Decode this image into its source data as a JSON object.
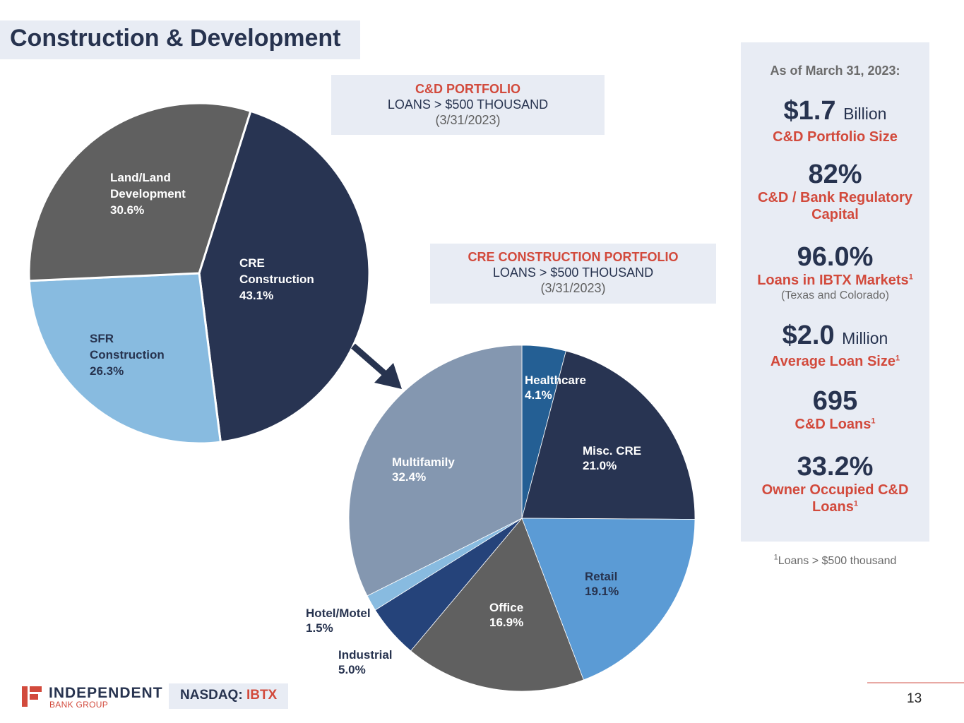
{
  "page": {
    "title": "Construction & Development",
    "page_number": "13"
  },
  "captions": {
    "cd": {
      "title": "C&D PORTFOLIO",
      "subtitle": "LOANS > $500 THOUSAND",
      "date": "(3/31/2023)"
    },
    "cre": {
      "title": "CRE CONSTRUCTION PORTFOLIO",
      "subtitle": "LOANS > $500 THOUSAND",
      "date": "(3/31/2023)"
    }
  },
  "colors": {
    "navy": "#27334f",
    "accent_red": "#d24a3c",
    "panel_bg": "#e8ecf4"
  },
  "chart_data": [
    {
      "type": "pie",
      "title": "C&D PORTFOLIO LOANS > $500 THOUSAND (3/31/2023)",
      "start_angle_deg": 17.6,
      "direction": "clockwise",
      "slices": [
        {
          "label_lines": [
            "CRE",
            "Construction"
          ],
          "value": 43.1,
          "pct": "43.1%",
          "color": "#283452",
          "text_color": "#ffffff"
        },
        {
          "label_lines": [
            "SFR",
            "Construction"
          ],
          "value": 26.3,
          "pct": "26.3%",
          "color": "#88bbe0",
          "text_color": "#27334f"
        },
        {
          "label_lines": [
            "Land/Land",
            "Development"
          ],
          "value": 30.6,
          "pct": "30.6%",
          "color": "#606060",
          "text_color": "#ffffff"
        }
      ]
    },
    {
      "type": "pie",
      "title": "CRE CONSTRUCTION PORTFOLIO LOANS > $500 THOUSAND (3/31/2023)",
      "start_angle_deg": 0,
      "direction": "clockwise",
      "slices": [
        {
          "label_lines": [
            "Healthcare"
          ],
          "value": 4.1,
          "pct": "4.1%",
          "color": "#245f94",
          "text_color": "#ffffff"
        },
        {
          "label_lines": [
            "Misc. CRE"
          ],
          "value": 21.0,
          "pct": "21.0%",
          "color": "#283452",
          "text_color": "#ffffff"
        },
        {
          "label_lines": [
            "Retail"
          ],
          "value": 19.1,
          "pct": "19.1%",
          "color": "#5b9bd5",
          "text_color": "#27334f"
        },
        {
          "label_lines": [
            "Office"
          ],
          "value": 16.9,
          "pct": "16.9%",
          "color": "#606060",
          "text_color": "#ffffff"
        },
        {
          "label_lines": [
            "Industrial"
          ],
          "value": 5.0,
          "pct": "5.0%",
          "color": "#25437a",
          "text_color": "#27334f"
        },
        {
          "label_lines": [
            "Hotel/Motel"
          ],
          "value": 1.5,
          "pct": "1.5%",
          "color": "#88bbe0",
          "text_color": "#27334f"
        },
        {
          "label_lines": [
            "Multifamily"
          ],
          "value": 32.4,
          "pct": "32.4%",
          "color": "#8497b0",
          "text_color": "#ffffff"
        }
      ]
    }
  ],
  "stats": {
    "as_of": "As of March 31, 2023:",
    "items": [
      {
        "value": "$1.7",
        "unit": "Billion",
        "label": "C&D Portfolio Size"
      },
      {
        "value": "82%",
        "label": "C&D / Bank Regulatory Capital"
      },
      {
        "value": "96.0%",
        "label": "Loans in IBTX Markets",
        "sup": "1",
        "note": "(Texas and Colorado)"
      },
      {
        "value": "$2.0",
        "unit": "Million",
        "label": "Average Loan Size",
        "sup": "1"
      },
      {
        "value": "695",
        "label": "C&D Loans",
        "sup": "1"
      },
      {
        "value": "33.2%",
        "label": "Owner Occupied C&D Loans",
        "sup": "1"
      }
    ],
    "footnote_mark": "1",
    "footnote": "Loans > $500 thousand"
  },
  "footer": {
    "logo_word": "INDEPENDENT",
    "logo_sub": "BANK GROUP",
    "ticker_label": "NASDAQ: ",
    "ticker_symbol": "IBTX"
  }
}
